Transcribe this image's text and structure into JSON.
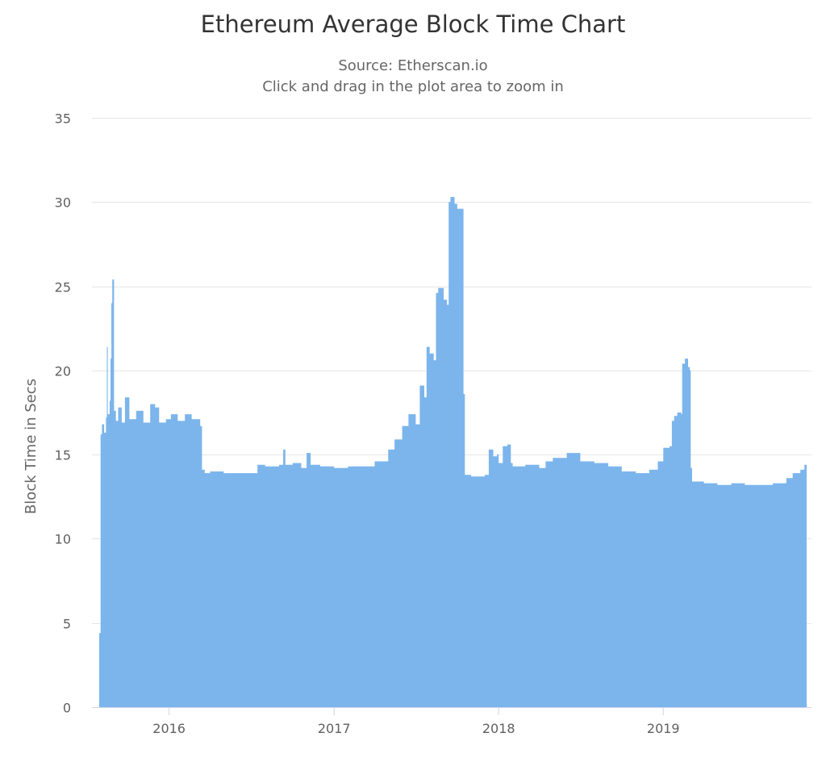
{
  "chart_data": {
    "type": "area",
    "title": "Ethereum Average Block Time Chart",
    "subtitle_lines": [
      "Source: Etherscan.io",
      "Click and drag in the plot area to zoom in"
    ],
    "xlabel": "",
    "ylabel": "Block Time in Secs",
    "ylim": [
      0,
      35
    ],
    "y_ticks": [
      0,
      5,
      10,
      15,
      20,
      25,
      30,
      35
    ],
    "x_ticks": [
      "2016",
      "2017",
      "2018",
      "2019"
    ],
    "x_range": [
      "2015-07-30",
      "2019-11-15"
    ],
    "grid": true,
    "legend": "none",
    "color": "#7cb5ec",
    "series": [
      {
        "points": [
          [
            "2015-07-30",
            4.4
          ],
          [
            "2015-08-02",
            16.2
          ],
          [
            "2015-08-05",
            16.8
          ],
          [
            "2015-08-10",
            16.3
          ],
          [
            "2015-08-14",
            17.2
          ],
          [
            "2015-08-16",
            21.4
          ],
          [
            "2015-08-18",
            17.4
          ],
          [
            "2015-08-22",
            18.2
          ],
          [
            "2015-08-24",
            20.7
          ],
          [
            "2015-08-26",
            24.0
          ],
          [
            "2015-08-28",
            25.4
          ],
          [
            "2015-09-01",
            17.6
          ],
          [
            "2015-09-05",
            17.0
          ],
          [
            "2015-09-10",
            17.8
          ],
          [
            "2015-09-18",
            16.9
          ],
          [
            "2015-09-25",
            18.4
          ],
          [
            "2015-10-05",
            17.1
          ],
          [
            "2015-10-20",
            17.6
          ],
          [
            "2015-11-05",
            16.9
          ],
          [
            "2015-11-20",
            18.0
          ],
          [
            "2015-12-01",
            17.8
          ],
          [
            "2015-12-10",
            16.9
          ],
          [
            "2015-12-25",
            17.1
          ],
          [
            "2016-01-05",
            17.4
          ],
          [
            "2016-01-20",
            17.0
          ],
          [
            "2016-02-05",
            17.4
          ],
          [
            "2016-02-20",
            17.1
          ],
          [
            "2016-03-10",
            16.7
          ],
          [
            "2016-03-14",
            14.1
          ],
          [
            "2016-03-20",
            13.9
          ],
          [
            "2016-04-01",
            14.0
          ],
          [
            "2016-05-01",
            13.9
          ],
          [
            "2016-06-01",
            13.9
          ],
          [
            "2016-07-01",
            13.9
          ],
          [
            "2016-07-15",
            14.4
          ],
          [
            "2016-08-01",
            14.3
          ],
          [
            "2016-09-01",
            14.4
          ],
          [
            "2016-09-10",
            15.3
          ],
          [
            "2016-09-15",
            14.4
          ],
          [
            "2016-10-01",
            14.5
          ],
          [
            "2016-10-20",
            14.2
          ],
          [
            "2016-11-01",
            15.1
          ],
          [
            "2016-11-10",
            14.4
          ],
          [
            "2016-12-01",
            14.3
          ],
          [
            "2017-01-01",
            14.2
          ],
          [
            "2017-02-01",
            14.3
          ],
          [
            "2017-03-01",
            14.3
          ],
          [
            "2017-04-01",
            14.6
          ],
          [
            "2017-05-01",
            15.3
          ],
          [
            "2017-05-15",
            15.9
          ],
          [
            "2017-06-01",
            16.7
          ],
          [
            "2017-06-15",
            17.4
          ],
          [
            "2017-07-01",
            16.8
          ],
          [
            "2017-07-10",
            19.1
          ],
          [
            "2017-07-20",
            18.4
          ],
          [
            "2017-07-25",
            21.4
          ],
          [
            "2017-08-01",
            21.0
          ],
          [
            "2017-08-10",
            20.6
          ],
          [
            "2017-08-15",
            24.6
          ],
          [
            "2017-08-20",
            24.9
          ],
          [
            "2017-09-01",
            24.2
          ],
          [
            "2017-09-08",
            23.9
          ],
          [
            "2017-09-12",
            30.0
          ],
          [
            "2017-09-16",
            30.3
          ],
          [
            "2017-09-25",
            29.9
          ],
          [
            "2017-10-01",
            29.6
          ],
          [
            "2017-10-10",
            29.6
          ],
          [
            "2017-10-15",
            18.6
          ],
          [
            "2017-10-18",
            13.8
          ],
          [
            "2017-11-01",
            13.7
          ],
          [
            "2017-12-01",
            13.8
          ],
          [
            "2017-12-10",
            15.3
          ],
          [
            "2017-12-20",
            14.9
          ],
          [
            "2017-12-28",
            15.0
          ],
          [
            "2018-01-01",
            14.5
          ],
          [
            "2018-01-10",
            15.5
          ],
          [
            "2018-01-20",
            15.6
          ],
          [
            "2018-01-28",
            14.5
          ],
          [
            "2018-02-01",
            14.3
          ],
          [
            "2018-03-01",
            14.4
          ],
          [
            "2018-04-01",
            14.2
          ],
          [
            "2018-04-15",
            14.6
          ],
          [
            "2018-05-01",
            14.8
          ],
          [
            "2018-06-01",
            15.1
          ],
          [
            "2018-07-01",
            14.6
          ],
          [
            "2018-08-01",
            14.5
          ],
          [
            "2018-09-01",
            14.3
          ],
          [
            "2018-10-01",
            14.0
          ],
          [
            "2018-11-01",
            13.9
          ],
          [
            "2018-12-01",
            14.1
          ],
          [
            "2018-12-20",
            14.6
          ],
          [
            "2019-01-01",
            15.4
          ],
          [
            "2019-01-15",
            15.5
          ],
          [
            "2019-01-20",
            17.0
          ],
          [
            "2019-01-25",
            17.3
          ],
          [
            "2019-02-01",
            17.5
          ],
          [
            "2019-02-10",
            17.4
          ],
          [
            "2019-02-12",
            20.4
          ],
          [
            "2019-02-18",
            20.7
          ],
          [
            "2019-02-25",
            20.2
          ],
          [
            "2019-03-01",
            20.0
          ],
          [
            "2019-03-03",
            14.2
          ],
          [
            "2019-03-06",
            13.4
          ],
          [
            "2019-04-01",
            13.3
          ],
          [
            "2019-05-01",
            13.2
          ],
          [
            "2019-06-01",
            13.3
          ],
          [
            "2019-07-01",
            13.2
          ],
          [
            "2019-08-01",
            13.2
          ],
          [
            "2019-09-01",
            13.3
          ],
          [
            "2019-10-01",
            13.6
          ],
          [
            "2019-10-15",
            13.9
          ],
          [
            "2019-11-01",
            14.1
          ],
          [
            "2019-11-10",
            14.4
          ],
          [
            "2019-11-15",
            13.9
          ]
        ]
      }
    ]
  }
}
